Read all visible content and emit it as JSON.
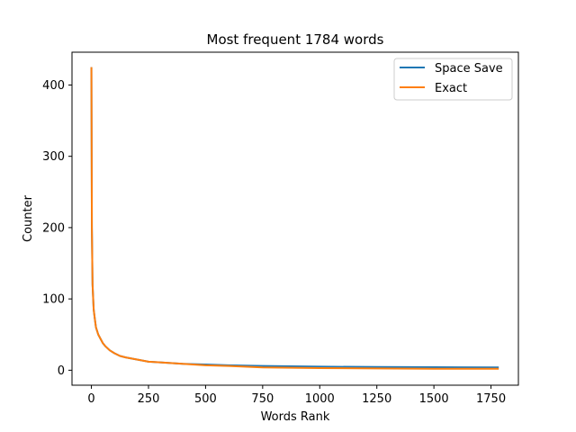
{
  "chart_data": {
    "type": "line",
    "title": "Most frequent 1784 words",
    "xlabel": "Words Rank",
    "ylabel": "Counter",
    "xlim": [
      -85,
      1870
    ],
    "ylim": [
      -21,
      446
    ],
    "xticks": [
      0,
      250,
      500,
      750,
      1000,
      1250,
      1500,
      1750
    ],
    "yticks": [
      0,
      100,
      200,
      300,
      400
    ],
    "grid": false,
    "legend_position": "top-right",
    "series": [
      {
        "name": "Space Save",
        "color": "#1f77b4",
        "x": [
          0,
          2,
          5,
          10,
          15,
          20,
          30,
          40,
          50,
          60,
          80,
          100,
          125,
          150,
          200,
          250,
          300,
          400,
          500,
          600,
          750,
          1000,
          1250,
          1500,
          1784
        ],
        "y": [
          425,
          200,
          120,
          85,
          72,
          60,
          50,
          44,
          38,
          34,
          28,
          24,
          20,
          18,
          15,
          12,
          11,
          9,
          8,
          7,
          6,
          5,
          4.5,
          4.2,
          4
        ]
      },
      {
        "name": "Exact",
        "color": "#ff7f0e",
        "x": [
          0,
          2,
          5,
          10,
          15,
          20,
          30,
          40,
          50,
          60,
          80,
          100,
          125,
          150,
          200,
          250,
          300,
          400,
          500,
          600,
          750,
          1000,
          1250,
          1500,
          1784
        ],
        "y": [
          425,
          200,
          120,
          85,
          72,
          60,
          50,
          44,
          38,
          34,
          28,
          24,
          20,
          18,
          15,
          12,
          11,
          9,
          7,
          6,
          4,
          3,
          2.5,
          2,
          2
        ]
      }
    ]
  }
}
